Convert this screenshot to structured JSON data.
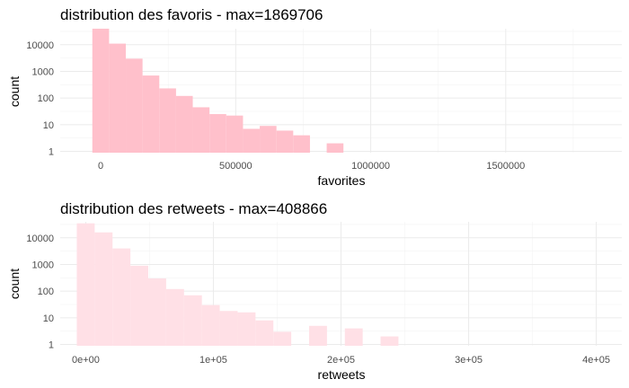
{
  "chart_data": [
    {
      "type": "bar",
      "title": "distribution des favoris - max=1869706",
      "xlabel": "favorites",
      "ylabel": "count",
      "y_scale": "log10",
      "grid": true,
      "bar_color": "#ffc0cb",
      "xlim": [
        -150000,
        1930000
      ],
      "ylim_log10": [
        -0.05,
        4.6
      ],
      "x_ticks": [
        {
          "value": 0,
          "label": "0"
        },
        {
          "value": 500000,
          "label": "500000"
        },
        {
          "value": 1000000,
          "label": "1000000"
        },
        {
          "value": 1500000,
          "label": "1500000"
        }
      ],
      "y_ticks": [
        {
          "value": 1,
          "label": "1"
        },
        {
          "value": 10,
          "label": "10"
        },
        {
          "value": 100,
          "label": "100"
        },
        {
          "value": 1000,
          "label": "1000"
        },
        {
          "value": 10000,
          "label": "10000"
        }
      ],
      "bins": [
        {
          "x0": -31000,
          "x1": 31000,
          "count": 40000
        },
        {
          "x0": 31000,
          "x1": 93000,
          "count": 11000
        },
        {
          "x0": 93000,
          "x1": 155000,
          "count": 3000
        },
        {
          "x0": 155000,
          "x1": 217000,
          "count": 700
        },
        {
          "x0": 217000,
          "x1": 279000,
          "count": 230
        },
        {
          "x0": 279000,
          "x1": 341000,
          "count": 120
        },
        {
          "x0": 341000,
          "x1": 403000,
          "count": 45
        },
        {
          "x0": 403000,
          "x1": 465000,
          "count": 25
        },
        {
          "x0": 465000,
          "x1": 527000,
          "count": 22
        },
        {
          "x0": 527000,
          "x1": 589000,
          "count": 7
        },
        {
          "x0": 589000,
          "x1": 651000,
          "count": 9
        },
        {
          "x0": 651000,
          "x1": 713000,
          "count": 6
        },
        {
          "x0": 713000,
          "x1": 775000,
          "count": 4
        },
        {
          "x0": 837000,
          "x1": 899000,
          "count": 2
        }
      ]
    },
    {
      "type": "bar",
      "title": "distribution des retweets - max=408866",
      "xlabel": "retweets",
      "ylabel": "count",
      "y_scale": "log10",
      "grid": true,
      "bar_color": "#ffe0e6",
      "xlim": [
        -20000,
        420000
      ],
      "ylim_log10": [
        -0.05,
        4.6
      ],
      "x_ticks": [
        {
          "value": 0,
          "label": "0e+00"
        },
        {
          "value": 100000,
          "label": "1e+05"
        },
        {
          "value": 200000,
          "label": "2e+05"
        },
        {
          "value": 300000,
          "label": "3e+05"
        },
        {
          "value": 400000,
          "label": "4e+05"
        }
      ],
      "y_ticks": [
        {
          "value": 1,
          "label": "1"
        },
        {
          "value": 10,
          "label": "10"
        },
        {
          "value": 100,
          "label": "100"
        },
        {
          "value": 1000,
          "label": "1000"
        },
        {
          "value": 10000,
          "label": "10000"
        }
      ],
      "bins": [
        {
          "x0": -7000,
          "x1": 7000,
          "count": 35000
        },
        {
          "x0": 7000,
          "x1": 21000,
          "count": 16000
        },
        {
          "x0": 21000,
          "x1": 35000,
          "count": 4000
        },
        {
          "x0": 35000,
          "x1": 49000,
          "count": 900
        },
        {
          "x0": 49000,
          "x1": 63000,
          "count": 300
        },
        {
          "x0": 63000,
          "x1": 77000,
          "count": 120
        },
        {
          "x0": 77000,
          "x1": 91000,
          "count": 70
        },
        {
          "x0": 91000,
          "x1": 105000,
          "count": 30
        },
        {
          "x0": 105000,
          "x1": 119000,
          "count": 18
        },
        {
          "x0": 119000,
          "x1": 133000,
          "count": 16
        },
        {
          "x0": 133000,
          "x1": 147000,
          "count": 8
        },
        {
          "x0": 147000,
          "x1": 161000,
          "count": 3
        },
        {
          "x0": 175000,
          "x1": 189000,
          "count": 5
        },
        {
          "x0": 203000,
          "x1": 217000,
          "count": 4
        },
        {
          "x0": 231000,
          "x1": 245000,
          "count": 2
        }
      ]
    }
  ]
}
